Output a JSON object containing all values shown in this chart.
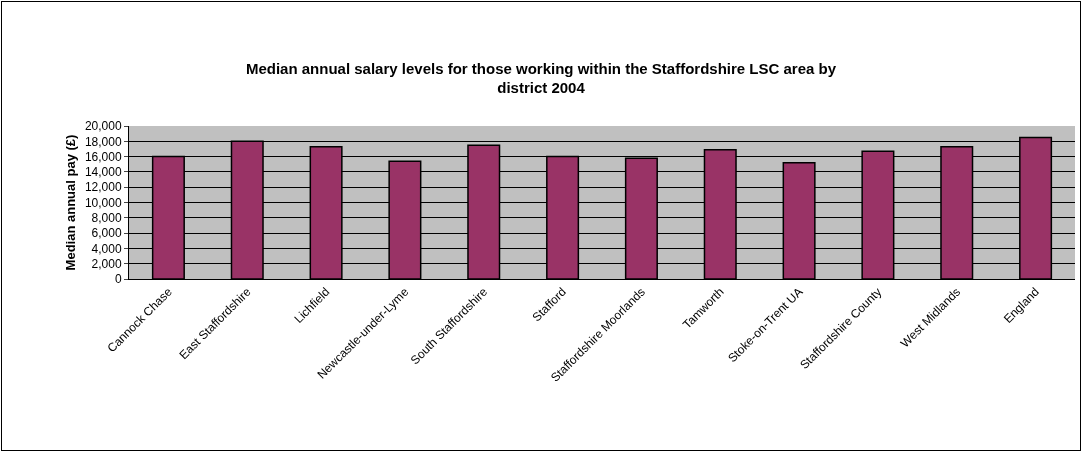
{
  "chart_data": {
    "type": "bar",
    "title": "Median annual salary levels for those working within the Staffordshire LSC area by district 2004",
    "ylabel": "Median annual pay (£)",
    "categories": [
      "Cannock Chase",
      "East Staffordshire",
      "Lichfield",
      "Newcastle-under-Lyme",
      "South Staffordshire",
      "Stafford",
      "Staffordshire Moorlands",
      "Tamworth",
      "Stoke-on-Trent UA",
      "Staffordshire County",
      "West Midlands",
      "England"
    ],
    "values": [
      16000,
      18000,
      17300,
      15400,
      17500,
      16000,
      15800,
      16900,
      15200,
      16700,
      17300,
      18500
    ],
    "color": "#993366",
    "ylim": [
      0,
      20000
    ],
    "yticks": [
      {
        "value": 0,
        "label": "0"
      },
      {
        "value": 2000,
        "label": "2,000"
      },
      {
        "value": 4000,
        "label": "4,000"
      },
      {
        "value": 6000,
        "label": "6,000"
      },
      {
        "value": 8000,
        "label": "8,000"
      },
      {
        "value": 10000,
        "label": "10,000"
      },
      {
        "value": 12000,
        "label": "12,000"
      },
      {
        "value": 14000,
        "label": "14,000"
      },
      {
        "value": 16000,
        "label": "16,000"
      },
      {
        "value": 18000,
        "label": "18,000"
      },
      {
        "value": 20000,
        "label": "20,000"
      }
    ],
    "grid": "y"
  }
}
